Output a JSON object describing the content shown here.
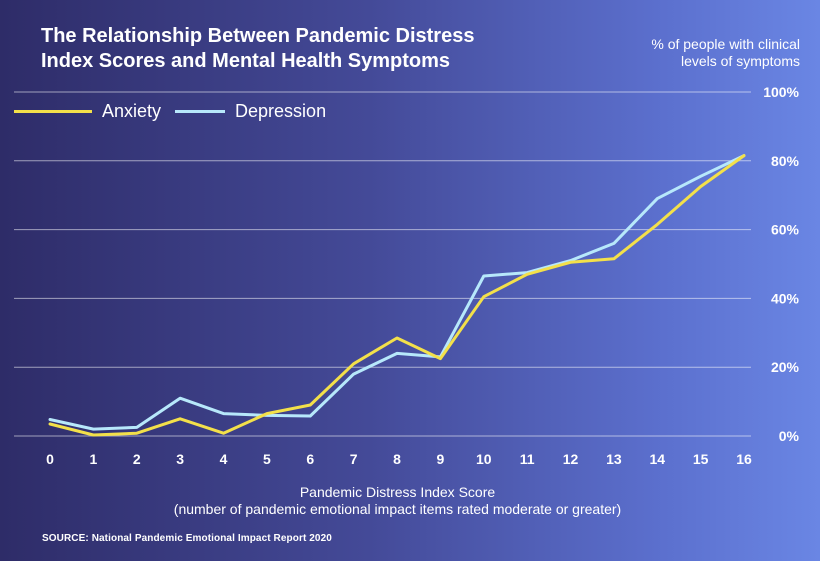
{
  "title_line1": "The Relationship Between Pandemic Distress",
  "title_line2": "Index Scores and Mental Health Symptoms",
  "subtitle_line1": "% of people with clinical",
  "subtitle_line2": "levels of symptoms",
  "xlabel_line1": "Pandemic Distress Index Score",
  "xlabel_line2": "(number of pandemic emotional impact items rated moderate or greater)",
  "source": "SOURCE: National Pandemic Emotional Impact Report 2020",
  "legend": [
    {
      "label": "Anxiety",
      "color": "#f3e04a"
    },
    {
      "label": "Depression",
      "color": "#b7e8fb"
    }
  ],
  "chart_data": {
    "type": "line",
    "x": [
      0,
      1,
      2,
      3,
      4,
      5,
      6,
      7,
      8,
      9,
      10,
      11,
      12,
      13,
      14,
      15,
      16
    ],
    "xticks": [
      "0",
      "1",
      "2",
      "3",
      "4",
      "5",
      "6",
      "7",
      "8",
      "9",
      "10",
      "11",
      "12",
      "13",
      "14",
      "15",
      "16"
    ],
    "yticks": [
      "0%",
      "20%",
      "40%",
      "60%",
      "80%",
      "100%"
    ],
    "ylim": [
      0,
      100
    ],
    "grid": true,
    "legend_position": "top-left",
    "series": [
      {
        "name": "Anxiety",
        "color": "#f3e04a",
        "values": [
          3.5,
          0.3,
          0.8,
          5,
          0.8,
          6.5,
          9,
          21,
          28.5,
          22.5,
          40.5,
          47,
          50.5,
          51.5,
          61.5,
          72.5,
          81.5
        ]
      },
      {
        "name": "Depression",
        "color": "#b7e8fb",
        "values": [
          4.8,
          2,
          2.5,
          11,
          6.5,
          6,
          5.8,
          18,
          24,
          23,
          46.5,
          47.5,
          51,
          56,
          69,
          75.5,
          81.5
        ]
      }
    ]
  }
}
